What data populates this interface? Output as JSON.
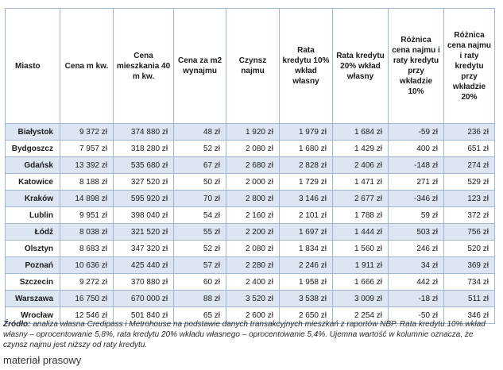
{
  "table": {
    "headers": [
      "Miasto",
      "Cena m kw.",
      "Cena mieszkania 40 m kw.",
      "Cena za m2 wynajmu",
      "Czynsz najmu",
      "Rata kredytu 10% wkład własny",
      "Rata kredytu 20% wkład własny",
      "Różnica cena najmu i raty kredytu przy wkładzie 10%",
      "Różnica cena najmu i raty kredytu przy wkładzie 20%"
    ],
    "rows": [
      [
        "Białystok",
        "9 372 zł",
        "374 880 zł",
        "48 zł",
        "1 920 zł",
        "1 979 zł",
        "1 684 zł",
        "-59 zł",
        "236 zł"
      ],
      [
        "Bydgoszcz",
        "7 957 zł",
        "318 280 zł",
        "52 zł",
        "2 080 zł",
        "1 680 zł",
        "1 429 zł",
        "400 zł",
        "651 zł"
      ],
      [
        "Gdańsk",
        "13 392 zł",
        "535 680 zł",
        "67 zł",
        "2 680 zł",
        "2 828 zł",
        "2 406 zł",
        "-148 zł",
        "274 zł"
      ],
      [
        "Katowice",
        "8 188 zł",
        "327 520 zł",
        "50 zł",
        "2 000 zł",
        "1 729 zł",
        "1 471 zł",
        "271 zł",
        "529 zł"
      ],
      [
        "Kraków",
        "14 898 zł",
        "595 920 zł",
        "70 zł",
        "2 800 zł",
        "3 146 zł",
        "2 677 zł",
        "-346 zł",
        "123 zł"
      ],
      [
        "Lublin",
        "9 951 zł",
        "398 040 zł",
        "54 zł",
        "2 160 zł",
        "2 101 zł",
        "1 788 zł",
        "59 zł",
        "372 zł"
      ],
      [
        "Łódź",
        "8 038 zł",
        "321 520 zł",
        "55 zł",
        "2 200 zł",
        "1 697 zł",
        "1 444 zł",
        "503 zł",
        "756 zł"
      ],
      [
        "Olsztyn",
        "8 683 zł",
        "347 320 zł",
        "52 zł",
        "2 080 zł",
        "1 834 zł",
        "1 560 zł",
        "246 zł",
        "520 zł"
      ],
      [
        "Poznań",
        "10 636 zł",
        "425 440 zł",
        "57 zł",
        "2 280 zł",
        "2 246 zł",
        "1 911 zł",
        "34 zł",
        "369 zł"
      ],
      [
        "Szczecin",
        "9 272 zł",
        "370 880 zł",
        "60 zł",
        "2 400 zł",
        "1 958 zł",
        "1 666 zł",
        "442 zł",
        "734 zł"
      ],
      [
        "Warszawa",
        "16 750 zł",
        "670 000 zł",
        "88 zł",
        "3 520 zł",
        "3 538 zł",
        "3 009 zł",
        "-18 zł",
        "511 zł"
      ],
      [
        "Wrocław",
        "12 546 zł",
        "501 840 zł",
        "65 zł",
        "2 600 zł",
        "2 650 zł",
        "2 254 zł",
        "-50 zł",
        "346 zł"
      ]
    ]
  },
  "source": {
    "label": "Źródło:",
    "text": " analiza własna Credipass i Metrohouse na podstawie danych transakcyjnych mieszkań z raportów NBP. Rata kredytu 10% wkład własny – oprocentowanie 5,8%, rata kredytu 20% wkładu własnego – oprocentowanie 5,4%. Ujemna wartość w kolumnie oznacza, że czynsz najmu jest niższy od raty kredytu."
  },
  "caption": "materiał prasowy"
}
